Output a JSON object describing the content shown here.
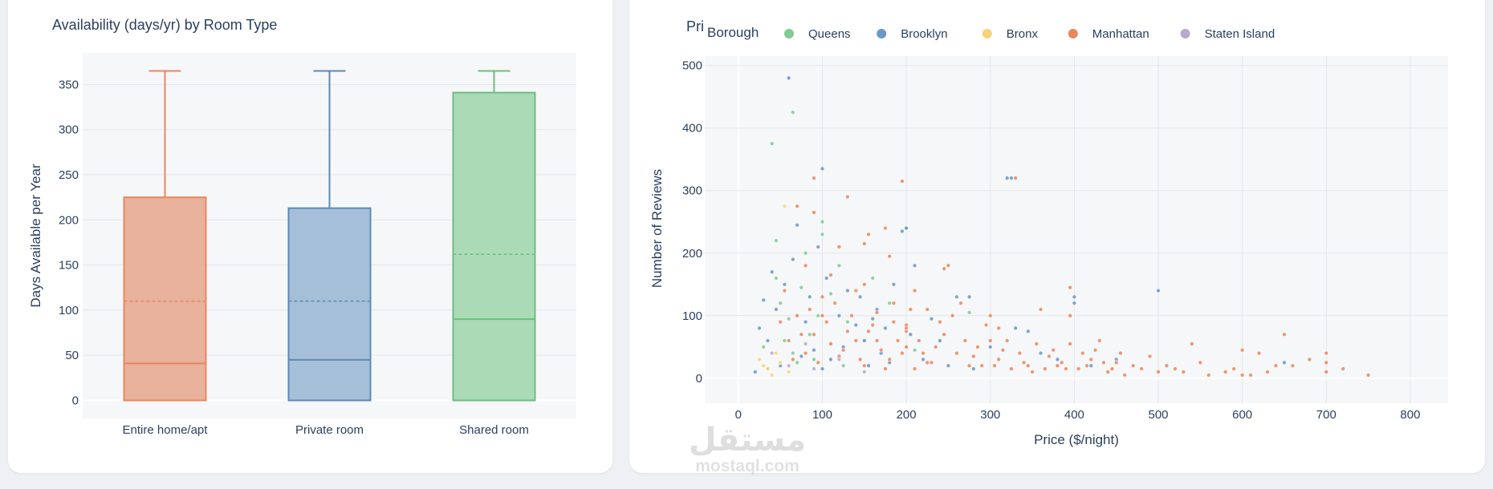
{
  "left_chart": {
    "title": "Availability (days/yr) by Room Type",
    "xlabel": "",
    "ylabel": "Days Available per Year"
  },
  "right_chart": {
    "title": "Pri",
    "xlabel": "Price ($/night)",
    "ylabel": "Number of Reviews",
    "legend_title": "Borough"
  },
  "watermark": {
    "arabic": "مستقل",
    "latin": "mostaql.com"
  },
  "chart_data": [
    {
      "type": "box",
      "title": "Availability (days/yr) by Room Type",
      "ylabel": "Days Available per Year",
      "ylim": [
        -20,
        385
      ],
      "yticks": [
        0,
        50,
        100,
        150,
        200,
        250,
        300,
        350
      ],
      "grid": true,
      "boxes": [
        {
          "category": "Entire home/apt",
          "min": 0,
          "q1": 0,
          "median": 41,
          "mean": 110,
          "q3": 225,
          "max": 365,
          "color": "#E8875E",
          "fill": "#E8B29C"
        },
        {
          "category": "Private room",
          "min": 0,
          "q1": 0,
          "median": 45,
          "mean": 110,
          "q3": 213,
          "max": 365,
          "color": "#5D8AB4",
          "fill": "#A6BFD8"
        },
        {
          "category": "Shared room",
          "min": 0,
          "q1": 0,
          "median": 90,
          "mean": 162,
          "q3": 341,
          "max": 365,
          "color": "#6DBD7E",
          "fill": "#ABDBB6"
        }
      ]
    },
    {
      "type": "scatter",
      "title": "Pri",
      "xlabel": "Price ($/night)",
      "ylabel": "Number of Reviews",
      "xlim": [
        -40,
        845
      ],
      "ylim": [
        -40,
        515
      ],
      "xticks": [
        0,
        100,
        200,
        300,
        400,
        500,
        600,
        700,
        800
      ],
      "yticks": [
        0,
        100,
        200,
        300,
        400,
        500
      ],
      "grid": true,
      "legend": "top, horizontal",
      "series": [
        {
          "name": "Queens",
          "color": "#7FCC94",
          "points": [
            [
              40,
              375
            ],
            [
              65,
              425
            ],
            [
              45,
              220
            ],
            [
              100,
              250
            ],
            [
              80,
              200
            ],
            [
              50,
              120
            ],
            [
              60,
              95
            ],
            [
              75,
              145
            ],
            [
              110,
              135
            ],
            [
              30,
              50
            ],
            [
              55,
              60
            ],
            [
              90,
              30
            ],
            [
              120,
              180
            ],
            [
              200,
              240
            ],
            [
              275,
              105
            ],
            [
              70,
              25
            ],
            [
              130,
              90
            ],
            [
              160,
              160
            ],
            [
              35,
              15
            ],
            [
              95,
              100
            ],
            [
              150,
              60
            ],
            [
              180,
              120
            ],
            [
              85,
              70
            ],
            [
              45,
              160
            ],
            [
              100,
              230
            ],
            [
              65,
              40
            ],
            [
              125,
              20
            ],
            [
              210,
              45
            ]
          ]
        },
        {
          "name": "Brooklyn",
          "color": "#6B98C5",
          "points": [
            [
              60,
              480
            ],
            [
              100,
              335
            ],
            [
              70,
              245
            ],
            [
              200,
              240
            ],
            [
              195,
              235
            ],
            [
              40,
              170
            ],
            [
              30,
              125
            ],
            [
              55,
              150
            ],
            [
              80,
              90
            ],
            [
              120,
              100
            ],
            [
              145,
              130
            ],
            [
              160,
              95
            ],
            [
              175,
              80
            ],
            [
              210,
              180
            ],
            [
              260,
              130
            ],
            [
              275,
              130
            ],
            [
              320,
              320
            ],
            [
              325,
              320
            ],
            [
              330,
              80
            ],
            [
              345,
              75
            ],
            [
              400,
              130
            ],
            [
              400,
              120
            ],
            [
              500,
              140
            ],
            [
              650,
              25
            ],
            [
              420,
              20
            ],
            [
              450,
              30
            ],
            [
              25,
              80
            ],
            [
              35,
              60
            ],
            [
              45,
              110
            ],
            [
              65,
              190
            ],
            [
              85,
              130
            ],
            [
              95,
              210
            ],
            [
              105,
              160
            ],
            [
              130,
              140
            ],
            [
              150,
              60
            ],
            [
              165,
              110
            ],
            [
              185,
              150
            ],
            [
              205,
              70
            ],
            [
              230,
              95
            ],
            [
              90,
              45
            ],
            [
              110,
              30
            ],
            [
              140,
              85
            ],
            [
              170,
              40
            ],
            [
              240,
              60
            ],
            [
              300,
              50
            ],
            [
              360,
              40
            ],
            [
              380,
              30
            ],
            [
              20,
              10
            ],
            [
              50,
              20
            ],
            [
              75,
              35
            ],
            [
              100,
              15
            ],
            [
              125,
              50
            ],
            [
              155,
              20
            ],
            [
              180,
              25
            ],
            [
              220,
              30
            ],
            [
              250,
              20
            ],
            [
              280,
              15
            ]
          ]
        },
        {
          "name": "Bronx",
          "color": "#F6D27A",
          "points": [
            [
              55,
              275
            ],
            [
              25,
              30
            ],
            [
              35,
              15
            ],
            [
              45,
              40
            ],
            [
              30,
              20
            ],
            [
              60,
              10
            ],
            [
              40,
              5
            ],
            [
              50,
              25
            ]
          ]
        },
        {
          "name": "Manhattan",
          "color": "#E8875E",
          "points": [
            [
              90,
              320
            ],
            [
              70,
              275
            ],
            [
              130,
              290
            ],
            [
              90,
              265
            ],
            [
              155,
              230
            ],
            [
              175,
              240
            ],
            [
              195,
              315
            ],
            [
              120,
              210
            ],
            [
              150,
              215
            ],
            [
              180,
              195
            ],
            [
              200,
              85
            ],
            [
              200,
              75
            ],
            [
              200,
              80
            ],
            [
              210,
              140
            ],
            [
              245,
              175
            ],
            [
              250,
              180
            ],
            [
              150,
              150
            ],
            [
              100,
              130
            ],
            [
              80,
              180
            ],
            [
              110,
              165
            ],
            [
              140,
              140
            ],
            [
              165,
              105
            ],
            [
              185,
              120
            ],
            [
              225,
              110
            ],
            [
              255,
              100
            ],
            [
              300,
              100
            ],
            [
              310,
              80
            ],
            [
              330,
              320
            ],
            [
              360,
              110
            ],
            [
              395,
              100
            ],
            [
              395,
              145
            ],
            [
              430,
              60
            ],
            [
              450,
              25
            ],
            [
              500,
              10
            ],
            [
              540,
              55
            ],
            [
              600,
              45
            ],
            [
              620,
              40
            ],
            [
              650,
              70
            ],
            [
              700,
              40
            ],
            [
              700,
              25
            ],
            [
              700,
              10
            ],
            [
              600,
              5
            ],
            [
              480,
              15
            ],
            [
              300,
              60
            ],
            [
              270,
              60
            ],
            [
              320,
              60
            ],
            [
              350,
              10
            ],
            [
              380,
              20
            ],
            [
              420,
              30
            ],
            [
              460,
              5
            ],
            [
              520,
              15
            ],
            [
              580,
              10
            ],
            [
              640,
              20
            ],
            [
              750,
              5
            ],
            [
              560,
              5
            ],
            [
              60,
              60
            ],
            [
              70,
              100
            ],
            [
              80,
              40
            ],
            [
              90,
              70
            ],
            [
              100,
              100
            ],
            [
              110,
              55
            ],
            [
              120,
              35
            ],
            [
              130,
              75
            ],
            [
              140,
              60
            ],
            [
              150,
              20
            ],
            [
              160,
              85
            ],
            [
              170,
              45
            ],
            [
              180,
              30
            ],
            [
              190,
              60
            ],
            [
              200,
              50
            ],
            [
              210,
              15
            ],
            [
              220,
              40
            ],
            [
              230,
              25
            ],
            [
              240,
              90
            ],
            [
              260,
              40
            ],
            [
              280,
              35
            ],
            [
              290,
              20
            ],
            [
              310,
              30
            ],
            [
              340,
              25
            ],
            [
              370,
              35
            ],
            [
              390,
              15
            ],
            [
              410,
              40
            ],
            [
              440,
              10
            ],
            [
              470,
              20
            ],
            [
              490,
              35
            ],
            [
              510,
              20
            ],
            [
              530,
              10
            ],
            [
              550,
              25
            ],
            [
              590,
              15
            ],
            [
              610,
              5
            ],
            [
              630,
              10
            ],
            [
              660,
              20
            ],
            [
              680,
              30
            ],
            [
              720,
              15
            ],
            [
              50,
              90
            ],
            [
              55,
              140
            ],
            [
              65,
              30
            ],
            [
              75,
              70
            ],
            [
              85,
              110
            ],
            [
              95,
              25
            ],
            [
              105,
              90
            ],
            [
              115,
              120
            ],
            [
              125,
              45
            ],
            [
              135,
              100
            ],
            [
              145,
              30
            ],
            [
              155,
              75
            ],
            [
              165,
              60
            ],
            [
              175,
              15
            ],
            [
              185,
              90
            ],
            [
              195,
              40
            ],
            [
              205,
              110
            ],
            [
              215,
              60
            ],
            [
              225,
              25
            ],
            [
              235,
              50
            ],
            [
              245,
              70
            ],
            [
              265,
              120
            ],
            [
              275,
              20
            ],
            [
              285,
              50
            ],
            [
              295,
              85
            ],
            [
              305,
              20
            ],
            [
              315,
              45
            ],
            [
              325,
              15
            ],
            [
              335,
              40
            ],
            [
              345,
              20
            ],
            [
              355,
              55
            ],
            [
              365,
              15
            ],
            [
              375,
              45
            ],
            [
              385,
              25
            ],
            [
              395,
              55
            ],
            [
              405,
              15
            ],
            [
              415,
              20
            ],
            [
              425,
              45
            ],
            [
              435,
              25
            ],
            [
              445,
              15
            ],
            [
              455,
              40
            ]
          ]
        },
        {
          "name": "Staten Island",
          "color": "#B8A9C9",
          "points": [
            [
              40,
              40
            ],
            [
              60,
              20
            ],
            [
              90,
              15
            ],
            [
              120,
              30
            ],
            [
              80,
              55
            ],
            [
              150,
              10
            ]
          ]
        }
      ]
    }
  ]
}
